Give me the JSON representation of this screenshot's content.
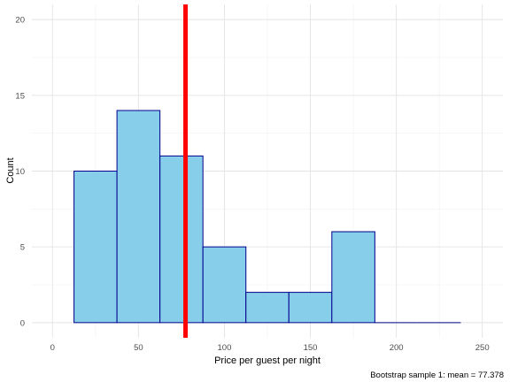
{
  "chart_data": {
    "type": "histogram",
    "title": "",
    "xlabel": "Price per guest per night",
    "ylabel": "Count",
    "caption": "Bootstrap sample 1: mean = 77.378",
    "xlim": [
      -12,
      262
    ],
    "ylim": [
      -1,
      21
    ],
    "x_ticks": [
      0,
      50,
      100,
      150,
      200,
      250
    ],
    "y_ticks": [
      0,
      5,
      10,
      15,
      20
    ],
    "bins": [
      {
        "x0": 12.5,
        "x1": 37.5,
        "count": 10
      },
      {
        "x0": 37.5,
        "x1": 62.5,
        "count": 14
      },
      {
        "x0": 62.5,
        "x1": 87.5,
        "count": 11
      },
      {
        "x0": 87.5,
        "x1": 112.5,
        "count": 5
      },
      {
        "x0": 112.5,
        "x1": 137.5,
        "count": 2
      },
      {
        "x0": 137.5,
        "x1": 162.5,
        "count": 2
      },
      {
        "x0": 162.5,
        "x1": 187.5,
        "count": 6
      },
      {
        "x0": 187.5,
        "x1": 212.5,
        "count": 0
      },
      {
        "x0": 212.5,
        "x1": 237.5,
        "count": 0
      }
    ],
    "vline": {
      "x": 77.378,
      "color": "#ff0000"
    },
    "bar_fill": "#87ceeb",
    "bar_stroke": "#00008b",
    "grid": true
  }
}
